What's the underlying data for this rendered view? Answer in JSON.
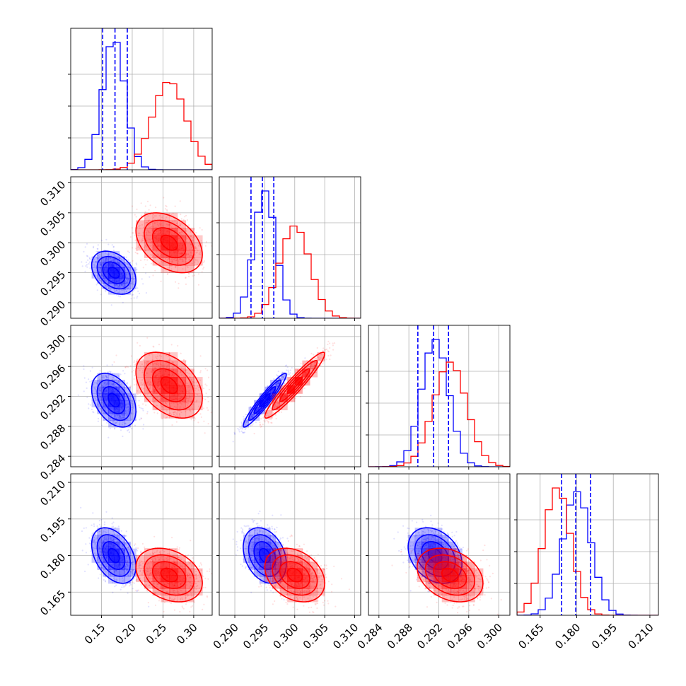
{
  "chart_data": {
    "type": "corner",
    "colors": {
      "series_a": "#0000ff",
      "series_b": "#ff0000",
      "grid": "#b0b0b0"
    },
    "grid": true,
    "legend": "none",
    "series": [
      {
        "color": "#0000ff",
        "mean": [
          0.17,
          0.295,
          0.2915,
          0.18
        ],
        "sd": [
          0.018,
          0.0018,
          0.0018,
          0.0057
        ],
        "corr": [
          [
            0,
            1,
            -0.35
          ],
          [
            0,
            2,
            -0.4
          ],
          [
            1,
            2,
            0.95
          ],
          [
            0,
            3,
            -0.4
          ],
          [
            1,
            3,
            -0.3
          ],
          [
            2,
            3,
            -0.3
          ]
        ],
        "quantiles": [
          [
            0.152,
            0.172,
            0.192
          ],
          [
            0.2927,
            0.2946,
            0.2965
          ],
          [
            0.2892,
            0.2913,
            0.2933
          ],
          [
            0.1738,
            0.1796,
            0.1857
          ]
        ]
      },
      {
        "color": "#ff0000",
        "mean": [
          0.26,
          0.3,
          0.2935,
          0.172
        ],
        "sd": [
          0.027,
          0.0025,
          0.0022,
          0.0055
        ],
        "corr": [
          [
            0,
            1,
            -0.4
          ],
          [
            0,
            2,
            -0.4
          ],
          [
            1,
            2,
            0.95
          ],
          [
            0,
            3,
            -0.3
          ],
          [
            1,
            3,
            -0.3
          ],
          [
            2,
            3,
            -0.3
          ]
        ]
      }
    ],
    "panels": {
      "param_ranges": [
        [
          0.1,
          0.33
        ],
        [
          0.2874,
          0.311
        ],
        [
          0.2826,
          0.3015
        ],
        [
          0.1555,
          0.2135
        ]
      ],
      "x_tick_values": [
        [
          0.15,
          0.2,
          0.25,
          0.3
        ],
        [
          0.29,
          0.295,
          0.3,
          0.305,
          0.31
        ],
        [
          0.284,
          0.288,
          0.292,
          0.296,
          0.3
        ],
        [
          0.165,
          0.18,
          0.195,
          0.21
        ]
      ],
      "x_tick_labels": [
        [
          "0.15",
          "0.20",
          "0.25",
          "0.30"
        ],
        [
          "0.290",
          "0.295",
          "0.300",
          "0.305",
          "0.310"
        ],
        [
          "0.284",
          "0.288",
          "0.292",
          "0.296",
          "0.300"
        ],
        [
          "0.165",
          "0.180",
          "0.195",
          "0.210"
        ]
      ],
      "y_tick_labels": [
        [],
        [
          "0.290",
          "0.295",
          "0.300",
          "0.305",
          "0.310"
        ],
        [
          "0.284",
          "0.288",
          "0.292",
          "0.296",
          "0.300"
        ],
        [
          "0.165",
          "0.180",
          "0.195",
          "0.210"
        ]
      ],
      "contour_levels": [
        "0.5-sigma",
        "1-sigma",
        "1.5-sigma",
        "2-sigma"
      ],
      "histogram_bins": 20
    }
  }
}
